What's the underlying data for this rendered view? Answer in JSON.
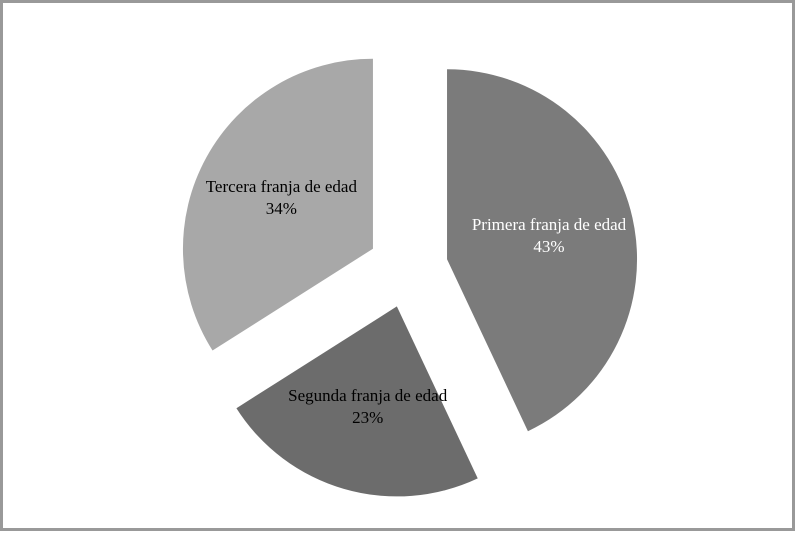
{
  "chart_data": {
    "type": "pie",
    "categories": [
      "Primera franja de edad",
      "Segunda franja de edad",
      "Tercera franja de edad"
    ],
    "values": [
      43,
      23,
      34
    ],
    "value_labels": [
      "43%",
      "23%",
      "34%"
    ],
    "colors": [
      "#7b7b7b",
      "#6c6c6c",
      "#a8a8a8"
    ],
    "label_colors": [
      "#ffffff",
      "#000000",
      "#000000"
    ]
  }
}
